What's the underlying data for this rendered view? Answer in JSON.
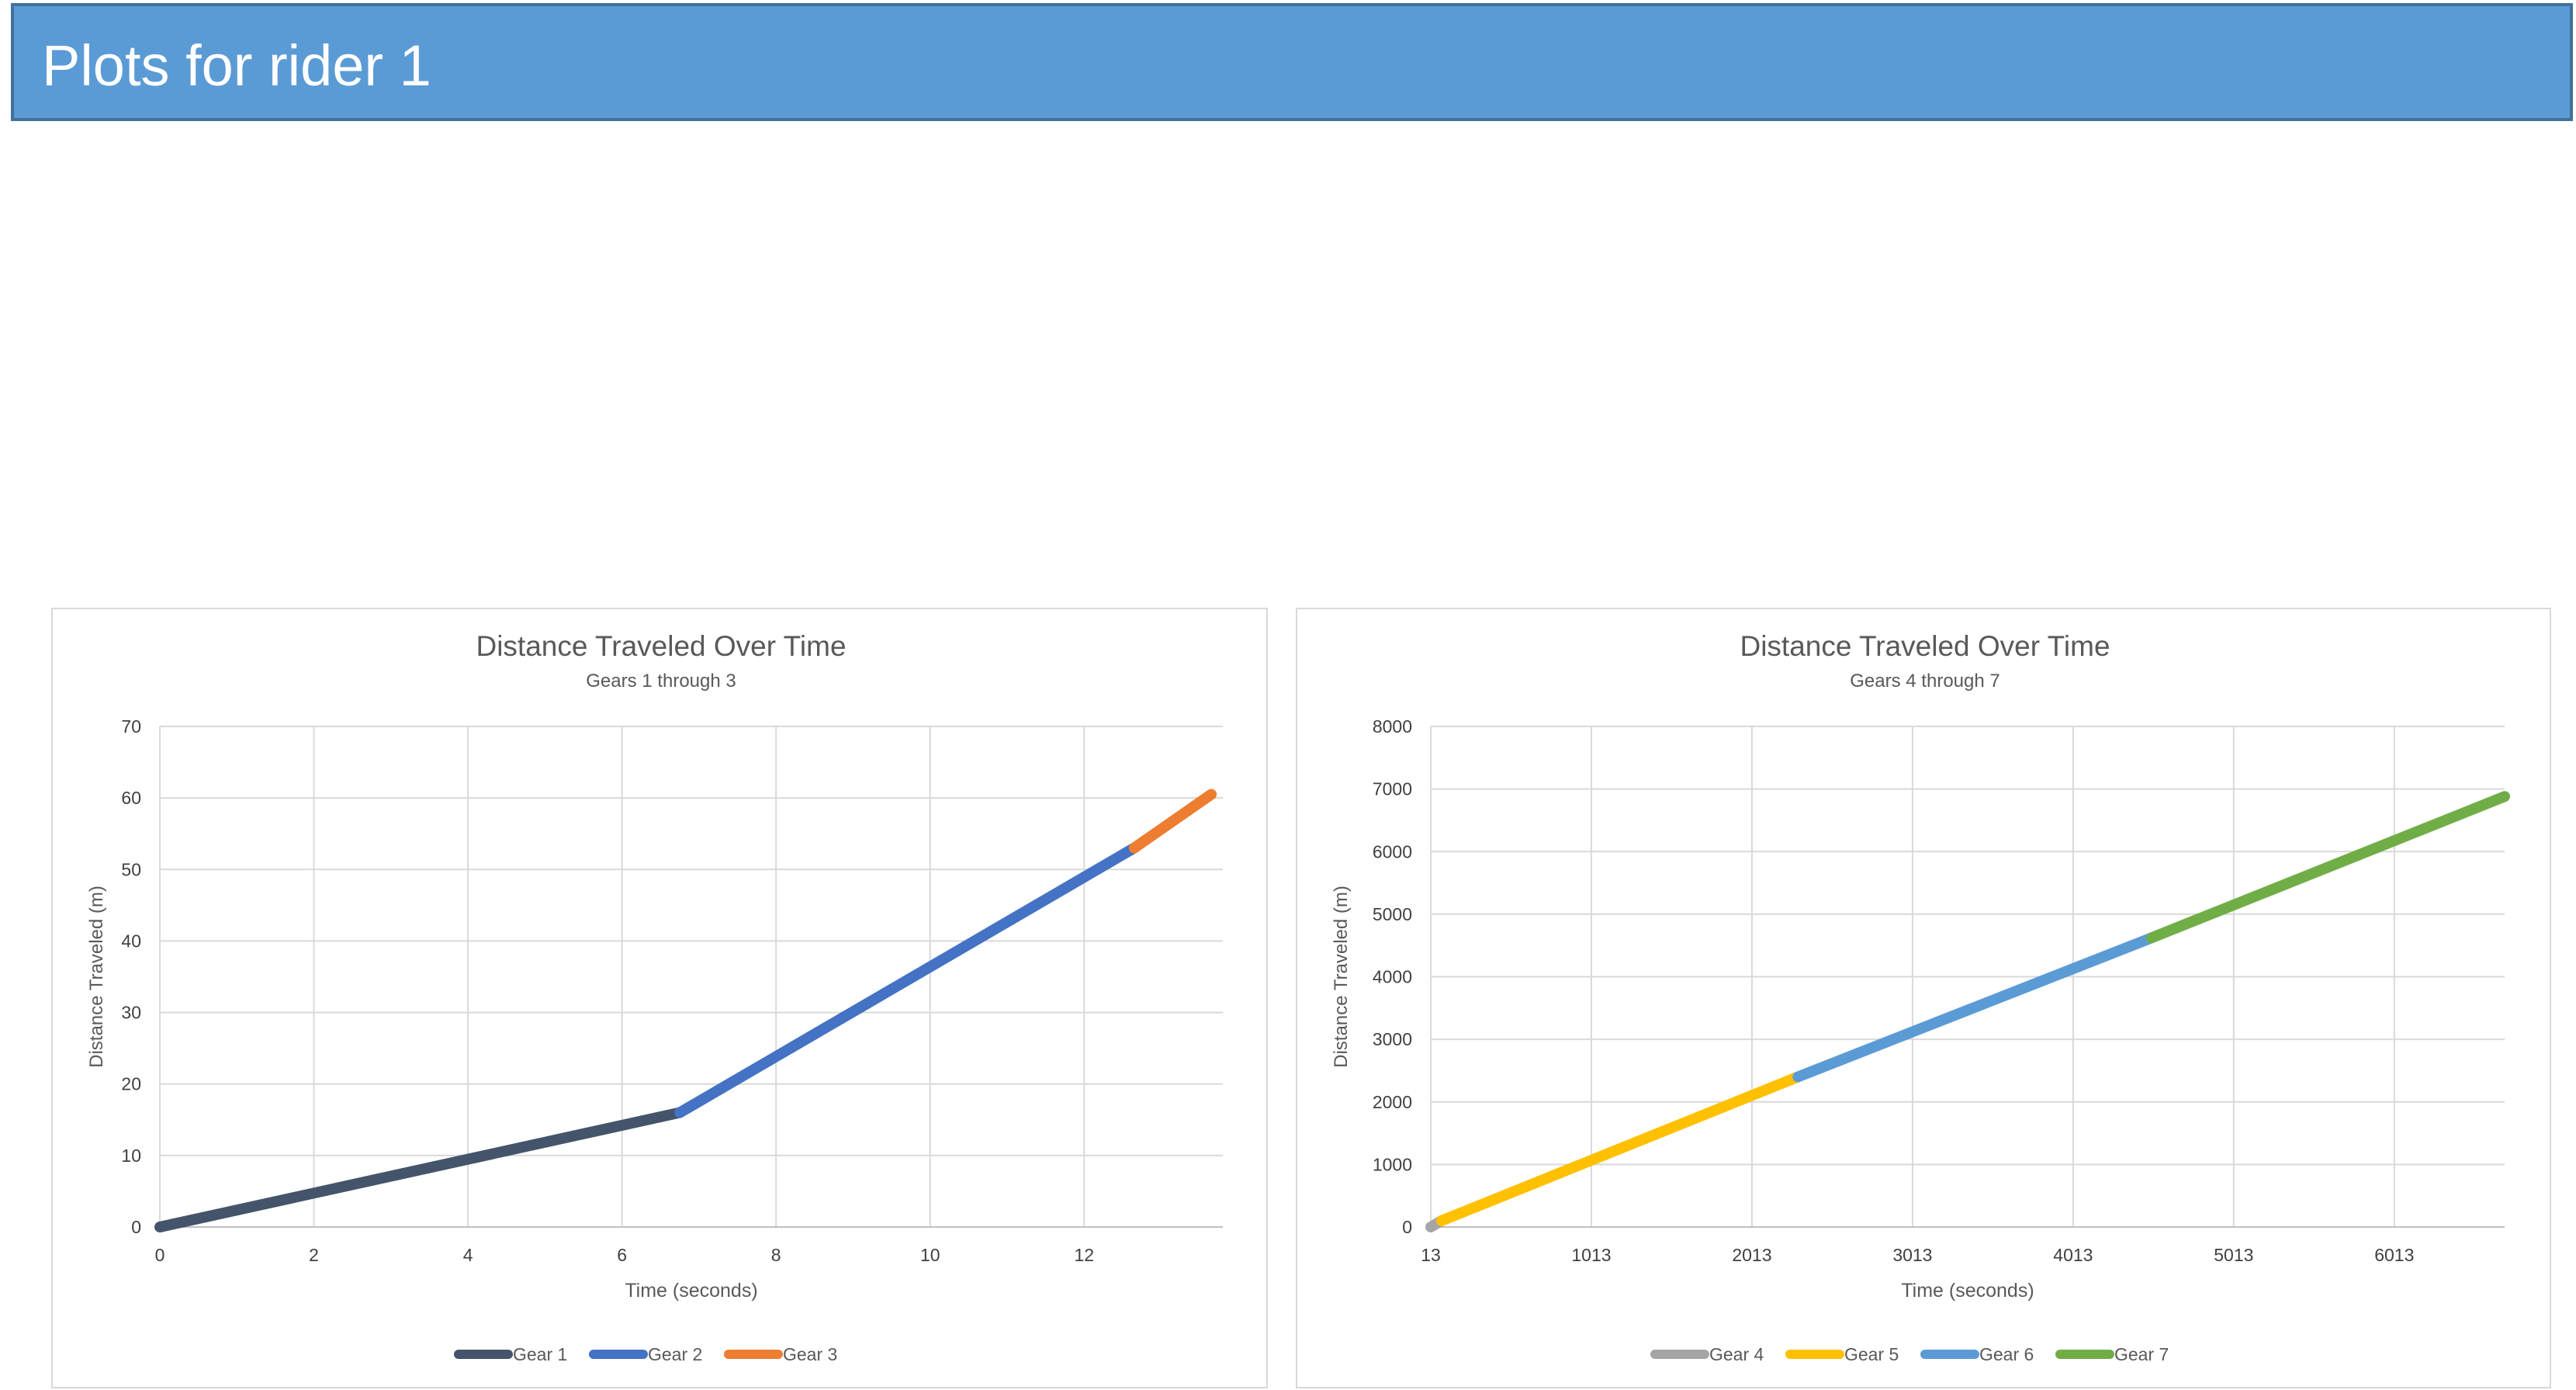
{
  "page": {
    "title": "Plots for rider 1",
    "banner_color": "#5b9bd5",
    "banner_text_color": "#ffffff"
  },
  "colors": {
    "gridline": "#d9d9d9",
    "axis_line": "#bfbfbf",
    "text": "#595959",
    "tick_text": "#404040"
  },
  "chart_data": [
    {
      "type": "line",
      "title": "Distance Traveled Over Time",
      "subtitle": "Gears 1 through 3",
      "xlabel": "Time (seconds)",
      "ylabel": "Distance Traveled (m)",
      "xlim": [
        0,
        13.8
      ],
      "ylim": [
        0,
        70
      ],
      "x_ticks": [
        0,
        2,
        4,
        6,
        8,
        10,
        12
      ],
      "y_ticks": [
        0,
        10,
        20,
        30,
        40,
        50,
        60,
        70
      ],
      "grid": true,
      "legend": "bottom",
      "series": [
        {
          "name": "Gear 1",
          "color": "#44546a",
          "points": [
            [
              0,
              0
            ],
            [
              6.75,
              16
            ]
          ]
        },
        {
          "name": "Gear 2",
          "color": "#4472c4",
          "points": [
            [
              6.75,
              16
            ],
            [
              12.65,
              53
            ]
          ]
        },
        {
          "name": "Gear 3",
          "color": "#ed7d31",
          "points": [
            [
              12.65,
              53
            ],
            [
              13.65,
              60.5
            ]
          ]
        }
      ]
    },
    {
      "type": "line",
      "title": "Distance Traveled Over Time",
      "subtitle": "Gears 4 through 7",
      "xlabel": "Time (seconds)",
      "ylabel": "Distance Traveled (m)",
      "xlim": [
        13,
        6700
      ],
      "ylim": [
        0,
        8000
      ],
      "x_ticks": [
        13,
        1013,
        2013,
        3013,
        4013,
        5013,
        6013
      ],
      "y_ticks": [
        0,
        1000,
        2000,
        3000,
        4000,
        5000,
        6000,
        7000,
        8000
      ],
      "grid": true,
      "legend": "bottom",
      "series": [
        {
          "name": "Gear 4",
          "color": "#a5a5a5",
          "points": [
            [
              13,
              0
            ],
            [
              80,
              100
            ]
          ]
        },
        {
          "name": "Gear 5",
          "color": "#ffc000",
          "points": [
            [
              80,
              100
            ],
            [
              2300,
              2400
            ]
          ]
        },
        {
          "name": "Gear 6",
          "color": "#5b9bd5",
          "points": [
            [
              2300,
              2400
            ],
            [
              4500,
              4620
            ]
          ]
        },
        {
          "name": "Gear 7",
          "color": "#70ad47",
          "points": [
            [
              4500,
              4620
            ],
            [
              6700,
              6880
            ]
          ]
        }
      ]
    }
  ]
}
